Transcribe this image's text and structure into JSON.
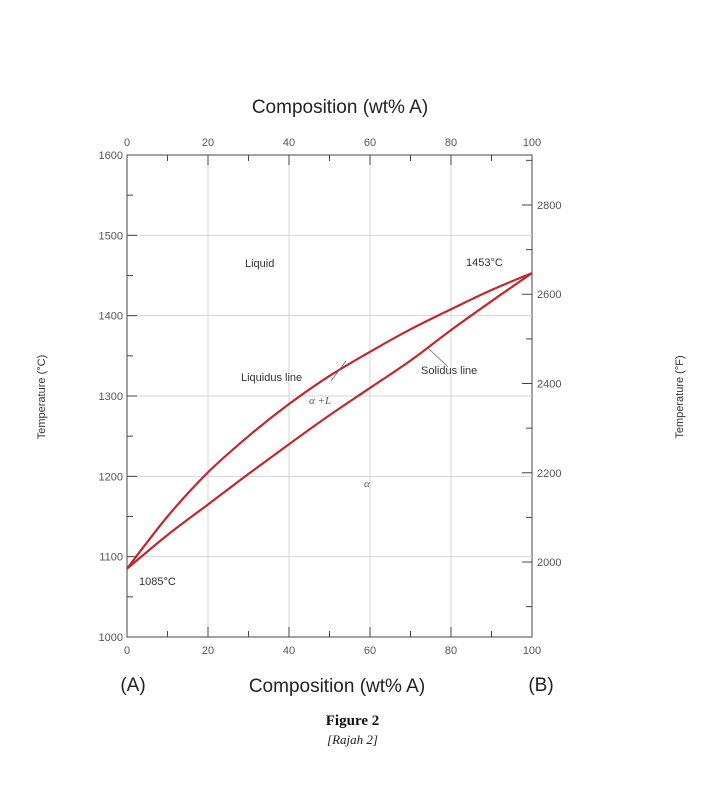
{
  "chart_data": {
    "type": "line",
    "title": "Composition (wt% A)",
    "xlabel": "Composition (wt% A)",
    "ylabel": "Temperature (°C)",
    "ylabel_right": "Temperature (°F)",
    "xlim": [
      0,
      100
    ],
    "ylim": [
      1000,
      1600
    ],
    "y2lim": [
      1832,
      2912
    ],
    "x_ticks": [
      0,
      20,
      40,
      60,
      80,
      100
    ],
    "y_ticks": [
      1000,
      1100,
      1200,
      1300,
      1400,
      1500,
      1600
    ],
    "y2_ticks": [
      2000,
      2200,
      2400,
      2600,
      2800
    ],
    "grid": true,
    "series": [
      {
        "name": "Liquidus line",
        "color": "#c0282d",
        "x": [
          0,
          10,
          20,
          30,
          40,
          50,
          60,
          70,
          80,
          90,
          100
        ],
        "y": [
          1085,
          1150,
          1205,
          1250,
          1290,
          1325,
          1355,
          1383,
          1408,
          1432,
          1453
        ]
      },
      {
        "name": "Solidus line",
        "color": "#c0282d",
        "x": [
          0,
          10,
          20,
          30,
          40,
          50,
          60,
          70,
          80,
          90,
          100
        ],
        "y": [
          1085,
          1127,
          1165,
          1203,
          1240,
          1276,
          1310,
          1344,
          1382,
          1418,
          1453
        ]
      }
    ],
    "annotations": {
      "liquid": "Liquid",
      "liquidus": "Liquidus line",
      "solidus": "Solidus line",
      "two_phase": "α +L",
      "alpha": "α",
      "melt_b": "1453°C",
      "melt_a": "1085°C"
    },
    "end_labels": {
      "left": "(A)",
      "right": "(B)"
    }
  },
  "caption": {
    "title": "Figure 2",
    "subtitle": "[Rajah 2]"
  }
}
